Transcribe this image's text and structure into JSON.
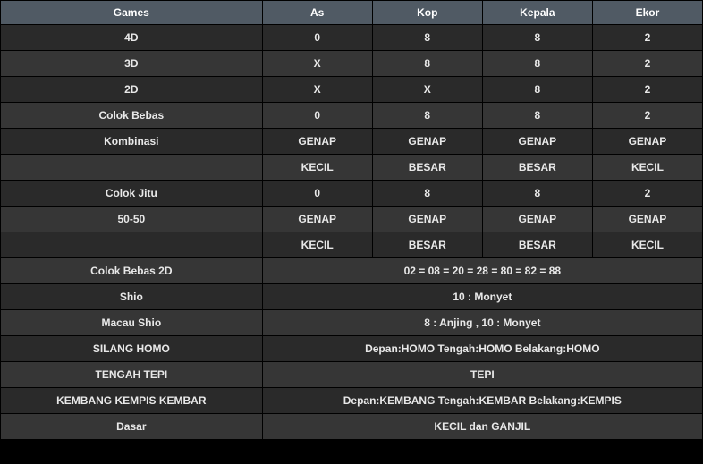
{
  "colors": {
    "header_bg": "#505a64",
    "row_bg_a": "#2a2a2a",
    "row_bg_b": "#363636",
    "text": "#e8e8e8",
    "header_text": "#ffffff",
    "border": "#000000"
  },
  "headers": [
    "Games",
    "As",
    "Kop",
    "Kepala",
    "Ekor"
  ],
  "rows": [
    {
      "shade": "a",
      "cells": [
        "4D",
        "0",
        "8",
        "8",
        "2"
      ]
    },
    {
      "shade": "b",
      "cells": [
        "3D",
        "X",
        "8",
        "8",
        "2"
      ]
    },
    {
      "shade": "a",
      "cells": [
        "2D",
        "X",
        "X",
        "8",
        "2"
      ]
    },
    {
      "shade": "b",
      "cells": [
        "Colok Bebas",
        "0",
        "8",
        "8",
        "2"
      ]
    },
    {
      "shade": "a",
      "cells": [
        "Kombinasi",
        "GENAP",
        "GENAP",
        "GENAP",
        "GENAP"
      ]
    },
    {
      "shade": "b",
      "cells": [
        "",
        "KECIL",
        "BESAR",
        "BESAR",
        "KECIL"
      ]
    },
    {
      "shade": "a",
      "cells": [
        "Colok Jitu",
        "0",
        "8",
        "8",
        "2"
      ]
    },
    {
      "shade": "b",
      "cells": [
        "50-50",
        "GENAP",
        "GENAP",
        "GENAP",
        "GENAP"
      ]
    },
    {
      "shade": "a",
      "cells": [
        "",
        "KECIL",
        "BESAR",
        "BESAR",
        "KECIL"
      ]
    }
  ],
  "spanRows": [
    {
      "shade": "b",
      "label": "Colok Bebas 2D",
      "value": "02 = 08 = 20 = 28 = 80 = 82 = 88"
    },
    {
      "shade": "a",
      "label": "Shio",
      "value": "10 : Monyet"
    },
    {
      "shade": "b",
      "label": "Macau Shio",
      "value": "8 : Anjing , 10 : Monyet"
    },
    {
      "shade": "a",
      "label": "SILANG HOMO",
      "value": "Depan:HOMO Tengah:HOMO Belakang:HOMO"
    },
    {
      "shade": "b",
      "label": "TENGAH TEPI",
      "value": "TEPI"
    },
    {
      "shade": "a",
      "label": "KEMBANG KEMPIS KEMBAR",
      "value": "Depan:KEMBANG Tengah:KEMBAR Belakang:KEMPIS"
    },
    {
      "shade": "b",
      "label": "Dasar",
      "value": "KECIL dan GANJIL"
    }
  ]
}
